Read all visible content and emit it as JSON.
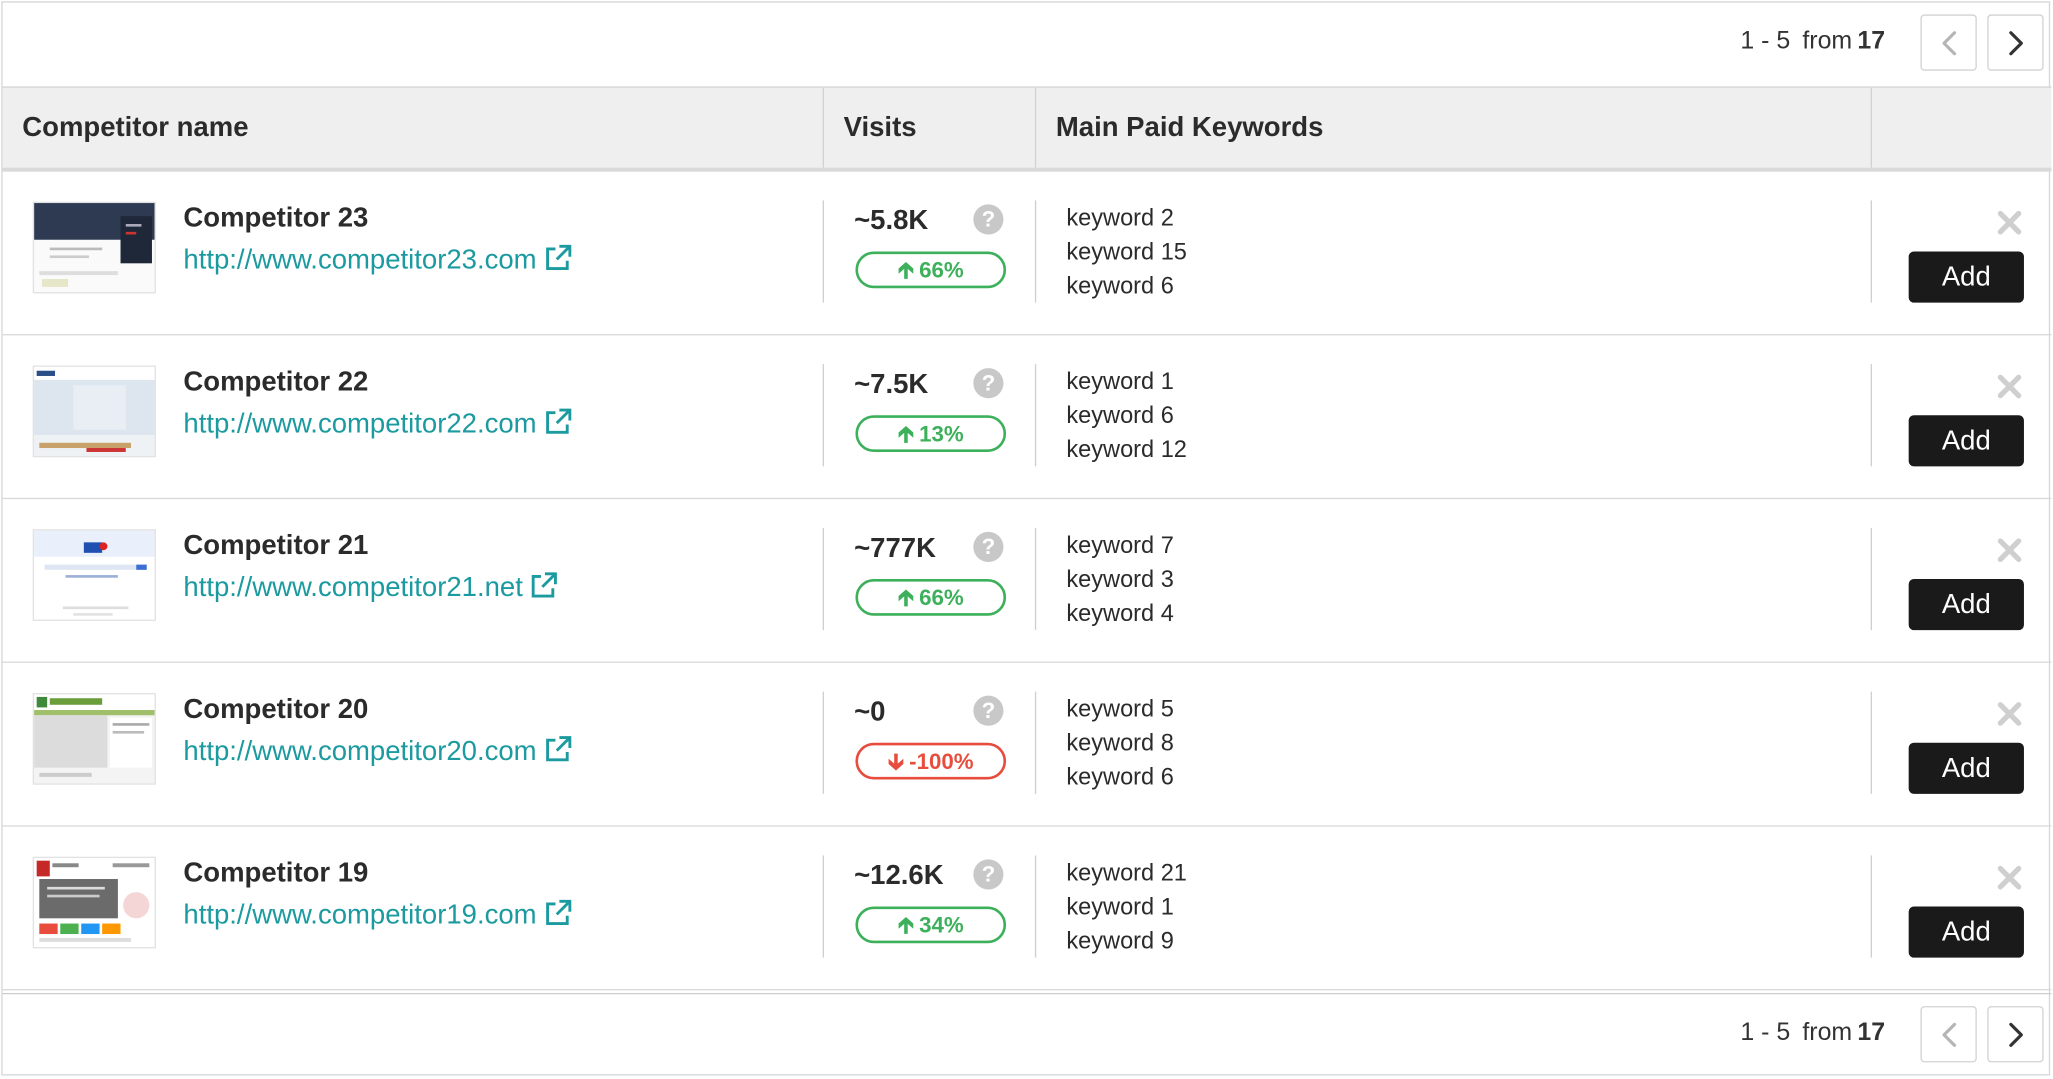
{
  "pagination": {
    "range": "1 - 5",
    "from_label": "from",
    "total": "17"
  },
  "table": {
    "columns": {
      "competitor": "Competitor name",
      "visits": "Visits",
      "keywords": "Main Paid Keywords"
    },
    "rows": [
      {
        "name": "Competitor 23",
        "url": "http://www.competitor23.com",
        "visits": "~5.8K",
        "trend": "66%",
        "trend_dir": "up",
        "keywords": [
          "keyword 2",
          "keyword 15",
          "keyword 6"
        ],
        "add_label": "Add"
      },
      {
        "name": "Competitor 22",
        "url": "http://www.competitor22.com",
        "visits": "~7.5K",
        "trend": "13%",
        "trend_dir": "up",
        "keywords": [
          "keyword 1",
          "keyword 6",
          "keyword 12"
        ],
        "add_label": "Add"
      },
      {
        "name": "Competitor 21",
        "url": "http://www.competitor21.net",
        "visits": "~777K",
        "trend": "66%",
        "trend_dir": "up",
        "keywords": [
          "keyword 7",
          "keyword 3",
          "keyword 4"
        ],
        "add_label": "Add"
      },
      {
        "name": "Competitor 20",
        "url": "http://www.competitor20.com",
        "visits": "~0",
        "trend": "-100%",
        "trend_dir": "down",
        "keywords": [
          "keyword 5",
          "keyword 8",
          "keyword 6"
        ],
        "add_label": "Add"
      },
      {
        "name": "Competitor 19",
        "url": "http://www.competitor19.com",
        "visits": "~12.6K",
        "trend": "34%",
        "trend_dir": "up",
        "keywords": [
          "keyword 21",
          "keyword 1",
          "keyword 9"
        ],
        "add_label": "Add"
      }
    ]
  },
  "icons": {
    "prev": "chevron-left-icon",
    "next": "chevron-right-icon",
    "external": "external-link-icon",
    "help": "question-circle-icon",
    "remove": "close-icon",
    "trend_up": "arrow-up-icon",
    "trend_down": "arrow-down-icon"
  },
  "colors": {
    "link": "#1b9aa0",
    "trend_up": "#3cb05a",
    "trend_down": "#e74c3c",
    "add_button": "#1a1a1a",
    "header_bg": "#efefef"
  }
}
